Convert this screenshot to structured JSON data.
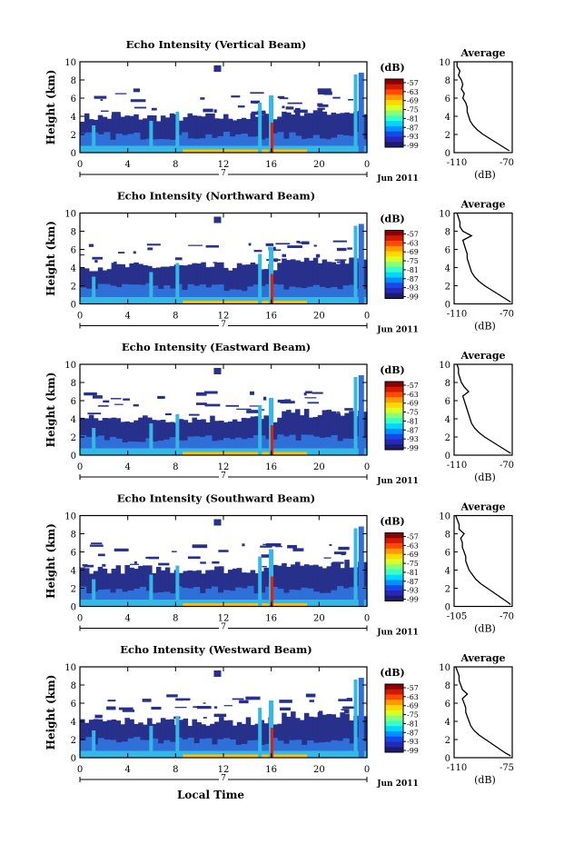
{
  "figure": {
    "bottom_label": "Local Time",
    "date_label": "Jun 2011",
    "day_label": "7",
    "average_title": "Average",
    "unit_label": "(dB)",
    "colorbar_ticks": [
      "-57",
      "-63",
      "-69",
      "-75",
      "-81",
      "-87",
      "-93",
      "-99"
    ],
    "colorbar_colors": [
      "#8b0000",
      "#d11a00",
      "#ff4a00",
      "#ff9a00",
      "#ffd800",
      "#d8ff28",
      "#88ff78",
      "#38ffc8",
      "#00d8ff",
      "#0090ff",
      "#1848e8",
      "#2828b8",
      "#1c1c6c"
    ],
    "colors": {
      "low_echo": "#27318c",
      "mid_echo": "#2e6fd8",
      "high_echo": "#35b8e6",
      "surface_echo": "#ffc000",
      "spike": "#e62000"
    }
  },
  "chart_data": [
    {
      "type": "heatmap",
      "title": "Echo Intensity (Vertical Beam)",
      "xlabel": "",
      "ylabel": "Height (km)",
      "x_ticks": [
        "0",
        "4",
        "8",
        "12",
        "16",
        "20",
        "0"
      ],
      "xlim": [
        0,
        24
      ],
      "y_ticks": [
        "0",
        "2",
        "4",
        "6",
        "8",
        "10"
      ],
      "ylim": [
        0,
        10
      ],
      "colorbar_label": "(dB)",
      "colorbar_range": [
        -99,
        -57
      ],
      "echo_top_km": 3.8
    },
    {
      "type": "heatmap",
      "title": "Echo Intensity (Northward Beam)",
      "xlabel": "",
      "ylabel": "Height (km)",
      "x_ticks": [
        "0",
        "4",
        "8",
        "12",
        "16",
        "20",
        "0"
      ],
      "xlim": [
        0,
        24
      ],
      "y_ticks": [
        "0",
        "2",
        "4",
        "6",
        "8",
        "10"
      ],
      "ylim": [
        0,
        10
      ],
      "colorbar_label": "(dB)",
      "colorbar_range": [
        -99,
        -57
      ],
      "echo_top_km": 4.0
    },
    {
      "type": "heatmap",
      "title": "Echo Intensity (Eastward Beam)",
      "xlabel": "",
      "ylabel": "Height (km)",
      "x_ticks": [
        "0",
        "4",
        "8",
        "12",
        "16",
        "20",
        "0"
      ],
      "xlim": [
        0,
        24
      ],
      "y_ticks": [
        "0",
        "2",
        "4",
        "6",
        "8",
        "10"
      ],
      "ylim": [
        0,
        10
      ],
      "colorbar_label": "(dB)",
      "colorbar_range": [
        -99,
        -57
      ],
      "echo_top_km": 3.9
    },
    {
      "type": "heatmap",
      "title": "Echo Intensity (Southward Beam)",
      "xlabel": "",
      "ylabel": "Height (km)",
      "x_ticks": [
        "0",
        "4",
        "8",
        "12",
        "16",
        "20",
        "0"
      ],
      "xlim": [
        0,
        24
      ],
      "y_ticks": [
        "0",
        "2",
        "4",
        "6",
        "8",
        "10"
      ],
      "ylim": [
        0,
        10
      ],
      "colorbar_label": "(dB)",
      "colorbar_range": [
        -99,
        -57
      ],
      "echo_top_km": 4.0
    },
    {
      "type": "heatmap",
      "title": "Echo Intensity (Westward Beam)",
      "xlabel": "",
      "ylabel": "Height (km)",
      "x_ticks": [
        "0",
        "4",
        "8",
        "12",
        "16",
        "20",
        "0"
      ],
      "xlim": [
        0,
        24
      ],
      "y_ticks": [
        "0",
        "2",
        "4",
        "6",
        "8",
        "10"
      ],
      "ylim": [
        0,
        10
      ],
      "colorbar_label": "(dB)",
      "colorbar_range": [
        -99,
        -57
      ],
      "echo_top_km": 3.9
    },
    {
      "type": "line",
      "title": "Average",
      "xlabel": "(dB)",
      "ylabel": "",
      "x_ticks": [
        "-110",
        "-70"
      ],
      "xlim": [
        -110,
        -70
      ],
      "y_ticks": [
        "0",
        "2",
        "4",
        "6",
        "8",
        "10"
      ],
      "ylim": [
        0,
        10
      ],
      "x": [
        -72,
        -75,
        -80,
        -85,
        -90,
        -94,
        -97,
        -99,
        -100,
        -101,
        -101,
        -102,
        -104,
        -103,
        -105,
        -104,
        -105,
        -107,
        -106,
        -108,
        -108
      ],
      "y": [
        0.2,
        0.5,
        1.0,
        1.5,
        2.0,
        2.5,
        3.0,
        3.5,
        4.0,
        4.5,
        5.0,
        5.5,
        6.0,
        6.5,
        7.0,
        7.5,
        8.0,
        8.5,
        9.0,
        9.5,
        10.0
      ]
    },
    {
      "type": "line",
      "title": "Average",
      "xlabel": "(dB)",
      "ylabel": "",
      "x_ticks": [
        "-110",
        "-70"
      ],
      "xlim": [
        -110,
        -70
      ],
      "y_ticks": [
        "0",
        "2",
        "4",
        "6",
        "8",
        "10"
      ],
      "ylim": [
        0,
        10
      ],
      "x": [
        -71,
        -74,
        -79,
        -84,
        -89,
        -93,
        -96,
        -98,
        -99,
        -100,
        -101,
        -101,
        -102,
        -103,
        -104,
        -98,
        -104,
        -106,
        -106,
        -107,
        -108
      ],
      "y": [
        0.2,
        0.5,
        1.0,
        1.5,
        2.0,
        2.5,
        3.0,
        3.5,
        4.0,
        4.5,
        5.0,
        5.5,
        6.0,
        6.5,
        7.0,
        7.5,
        8.0,
        8.5,
        9.0,
        9.5,
        10.0
      ]
    },
    {
      "type": "line",
      "title": "Average",
      "xlabel": "(dB)",
      "ylabel": "",
      "x_ticks": [
        "-110",
        "-70"
      ],
      "xlim": [
        -110,
        -70
      ],
      "y_ticks": [
        "0",
        "2",
        "4",
        "6",
        "8",
        "10"
      ],
      "ylim": [
        0,
        10
      ],
      "x": [
        -71,
        -74,
        -79,
        -84,
        -89,
        -93,
        -96,
        -98,
        -99,
        -100,
        -101,
        -102,
        -103,
        -104,
        -100,
        -103,
        -105,
        -106,
        -107,
        -107,
        -108
      ],
      "y": [
        0.2,
        0.5,
        1.0,
        1.5,
        2.0,
        2.5,
        3.0,
        3.5,
        4.0,
        4.5,
        5.0,
        5.5,
        6.0,
        6.5,
        7.0,
        7.5,
        8.0,
        8.5,
        9.0,
        9.5,
        10.0
      ]
    },
    {
      "type": "line",
      "title": "Average",
      "xlabel": "(dB)",
      "ylabel": "",
      "x_ticks": [
        "-105",
        "-70"
      ],
      "xlim": [
        -105,
        -70
      ],
      "y_ticks": [
        "0",
        "2",
        "4",
        "6",
        "8",
        "10"
      ],
      "ylim": [
        0,
        10
      ],
      "x": [
        -71,
        -73,
        -77,
        -81,
        -85,
        -89,
        -92,
        -94,
        -96,
        -97,
        -98,
        -98,
        -99,
        -100,
        -100,
        -101,
        -99,
        -102,
        -102,
        -103,
        -104
      ],
      "y": [
        0.2,
        0.5,
        1.0,
        1.5,
        2.0,
        2.5,
        3.0,
        3.5,
        4.0,
        4.5,
        5.0,
        5.5,
        6.0,
        6.5,
        7.0,
        7.5,
        8.0,
        8.5,
        9.0,
        9.5,
        10.0
      ]
    },
    {
      "type": "line",
      "title": "Average",
      "xlabel": "(dB)",
      "ylabel": "",
      "x_ticks": [
        "-110",
        "-75"
      ],
      "xlim": [
        -110,
        -75
      ],
      "y_ticks": [
        "0",
        "2",
        "4",
        "6",
        "8",
        "10"
      ],
      "ylim": [
        0,
        10
      ],
      "x": [
        -76,
        -79,
        -83,
        -87,
        -91,
        -95,
        -98,
        -100,
        -101,
        -102,
        -103,
        -103,
        -104,
        -105,
        -102,
        -105,
        -106,
        -107,
        -107,
        -108,
        -109
      ],
      "y": [
        0.2,
        0.5,
        1.0,
        1.5,
        2.0,
        2.5,
        3.0,
        3.5,
        4.0,
        4.5,
        5.0,
        5.5,
        6.0,
        6.5,
        7.0,
        7.5,
        8.0,
        8.5,
        9.0,
        9.5,
        10.0
      ]
    }
  ]
}
